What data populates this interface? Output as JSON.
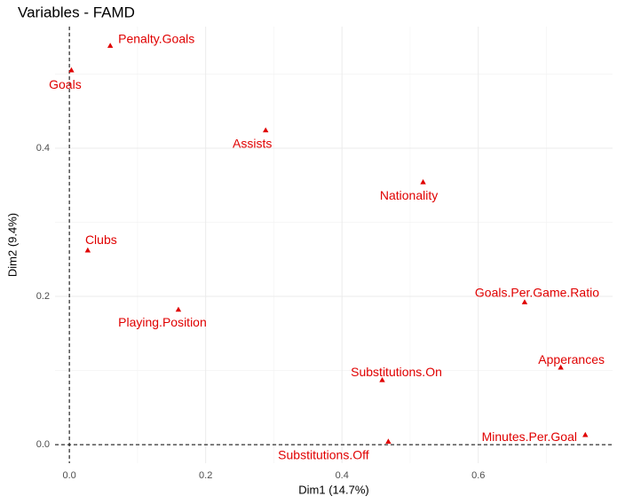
{
  "chart_data": {
    "type": "scatter",
    "title": "Variables - FAMD",
    "xlabel": "Dim1 (14.7%)",
    "ylabel": "Dim2 (9.4%)",
    "labels": [
      "Goals",
      "Penalty.Goals",
      "Assists",
      "Nationality",
      "Clubs",
      "Playing.Position",
      "Goals.Per.Game.Ratio",
      "Apperances",
      "Substitutions.On",
      "Minutes.Per.Goal",
      "Substitutions.Off"
    ],
    "x": [
      0.003,
      0.06,
      0.288,
      0.519,
      0.027,
      0.16,
      0.668,
      0.721,
      0.459,
      0.757,
      0.468
    ],
    "values": [
      0.505,
      0.538,
      0.424,
      0.354,
      0.262,
      0.182,
      0.192,
      0.104,
      0.087,
      0.013,
      0.004
    ],
    "color": "#e00000",
    "xlim": [
      -0.021,
      0.797
    ],
    "ylim": [
      -0.025,
      0.564
    ],
    "xticks": [
      {
        "value": 0,
        "label": "0.0"
      },
      0.2,
      0.4,
      0.6
    ],
    "yticks": [
      {
        "value": 0,
        "label": "0.0"
      },
      0.2,
      0.4
    ],
    "grid": true
  }
}
